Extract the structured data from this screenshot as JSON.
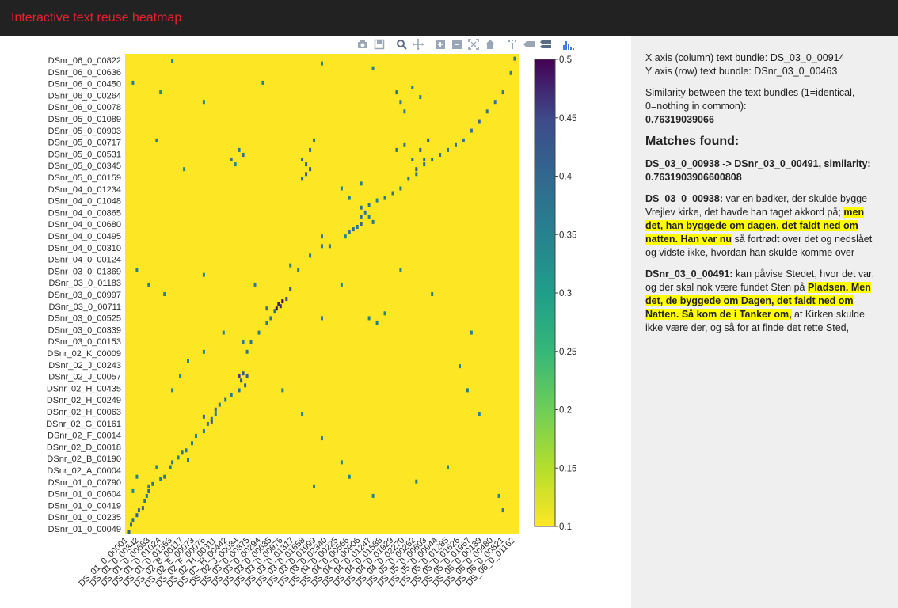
{
  "app": {
    "title": "Interactive text reuse heatmap"
  },
  "colors": {
    "topbar": "#222222",
    "title": "#e8212f",
    "sidepanel": "#efefef",
    "highlight": "#ffff00"
  },
  "modebar": {
    "buttons": [
      {
        "name": "camera-icon",
        "label": "Download plot as a png"
      },
      {
        "name": "save-icon",
        "label": "Save"
      },
      {
        "name": "zoom-icon",
        "label": "Zoom"
      },
      {
        "name": "pan-icon",
        "label": "Pan"
      },
      {
        "name": "zoom-in-icon",
        "label": "Zoom in"
      },
      {
        "name": "zoom-out-icon",
        "label": "Zoom out"
      },
      {
        "name": "autoscale-icon",
        "label": "Autoscale"
      },
      {
        "name": "home-icon",
        "label": "Reset axes"
      },
      {
        "name": "spike-lines-icon",
        "label": "Toggle Spike Lines"
      },
      {
        "name": "hover-closest-icon",
        "label": "Show closest data on hover"
      },
      {
        "name": "hover-compare-icon",
        "label": "Compare data on hover"
      },
      {
        "name": "plotly-logo-icon",
        "label": "Produced with Plotly"
      }
    ]
  },
  "chart_data": {
    "type": "heatmap",
    "title": "",
    "xlabel": "",
    "ylabel": "",
    "colorscale": "viridis (reversed)",
    "zmin": 0.1,
    "zmax": 0.5,
    "colorbar_ticks": [
      "0.5",
      "0.45",
      "0.4",
      "0.35",
      "0.3",
      "0.25",
      "0.2",
      "0.15",
      "0.1"
    ],
    "y_tick_labels": [
      "DSnr_06_0_00822",
      "DSnr_06_0_00636",
      "DSnr_06_0_00450",
      "DSnr_06_0_00264",
      "DSnr_06_0_00078",
      "DSnr_05_0_01089",
      "DSnr_05_0_00903",
      "DSnr_05_0_00717",
      "DSnr_05_0_00531",
      "DSnr_05_0_00345",
      "DSnr_05_0_00159",
      "DSnr_04_0_01234",
      "DSnr_04_0_01048",
      "DSnr_04_0_00865",
      "DSnr_04_0_00680",
      "DSnr_04_0_00495",
      "DSnr_04_0_00310",
      "DSnr_04_0_00124",
      "DSnr_03_0_01369",
      "DSnr_03_0_01183",
      "DSnr_03_0_00997",
      "DSnr_03_0_00711",
      "DSnr_03_0_00525",
      "DSnr_03_0_00339",
      "DSnr_03_0_00153",
      "DSnr_02_K_00009",
      "DSnr_02_J_00243",
      "DSnr_02_J_00057",
      "DSnr_02_H_00435",
      "DSnr_02_H_00249",
      "DSnr_02_H_00063",
      "DSnr_02_G_00161",
      "DSnr_02_F_00014",
      "DSnr_02_D_00018",
      "DSnr_02_B_00190",
      "DSnr_02_A_00004",
      "DSnr_01_0_00790",
      "DSnr_01_0_00604",
      "DSnr_01_0_00419",
      "DSnr_01_0_00235",
      "DSnr_01_0_00049"
    ],
    "x_tick_labels": [
      "DS_01_0_00001",
      "DS_01_0_00342",
      "DS_01_0_00683",
      "DS_01_0_01024",
      "DS_01_0_01363",
      "DS_02_B_00117",
      "DS_02_E_00073",
      "DS_02_F_00076",
      "DS_02_H_00311",
      "DS_02_H_00442",
      "DS_02_J_00034",
      "DS_03_0_00375",
      "DS_03_0_00294",
      "DS_03_0_00635",
      "DS_03_0_00976",
      "DS_03_0_01317",
      "DS_03_0_01658",
      "DS_03_0_01999",
      "DS_03_0_02340",
      "DS_04_0_00225",
      "DS_04_0_00566",
      "DS_04_0_00906",
      "DS_04_0_01247",
      "DS_04_0_01588",
      "DS_04_0_01929",
      "DS_04_0_02270",
      "DS_05_0_00262",
      "DS_05_0_00603",
      "DS_05_0_00944",
      "DS_05_0_01285",
      "DS_05_0_01626",
      "DS_05_0_01967",
      "DS_06_0_00139",
      "DS_06_0_00480",
      "DS_06_0_00821",
      "DS_06_0_01162"
    ],
    "background_value": 0.1,
    "points": [
      {
        "x": 0.01,
        "y": 0.005,
        "z": 0.42
      },
      {
        "x": 0.015,
        "y": 0.02,
        "z": 0.4
      },
      {
        "x": 0.02,
        "y": 0.03,
        "z": 0.38
      },
      {
        "x": 0.03,
        "y": 0.04,
        "z": 0.42
      },
      {
        "x": 0.035,
        "y": 0.05,
        "z": 0.4
      },
      {
        "x": 0.045,
        "y": 0.055,
        "z": 0.41
      },
      {
        "x": 0.05,
        "y": 0.07,
        "z": 0.38
      },
      {
        "x": 0.055,
        "y": 0.08,
        "z": 0.39
      },
      {
        "x": 0.06,
        "y": 0.09,
        "z": 0.4
      },
      {
        "x": 0.07,
        "y": 0.105,
        "z": 0.38
      },
      {
        "x": 0.09,
        "y": 0.115,
        "z": 0.36
      },
      {
        "x": 0.1,
        "y": 0.12,
        "z": 0.38
      },
      {
        "x": 0.115,
        "y": 0.14,
        "z": 0.37
      },
      {
        "x": 0.12,
        "y": 0.15,
        "z": 0.38
      },
      {
        "x": 0.135,
        "y": 0.16,
        "z": 0.37
      },
      {
        "x": 0.145,
        "y": 0.17,
        "z": 0.39
      },
      {
        "x": 0.155,
        "y": 0.175,
        "z": 0.38
      },
      {
        "x": 0.17,
        "y": 0.19,
        "z": 0.37
      },
      {
        "x": 0.18,
        "y": 0.205,
        "z": 0.36
      },
      {
        "x": 0.2,
        "y": 0.215,
        "z": 0.37
      },
      {
        "x": 0.21,
        "y": 0.23,
        "z": 0.38
      },
      {
        "x": 0.22,
        "y": 0.24,
        "z": 0.39
      },
      {
        "x": 0.23,
        "y": 0.25,
        "z": 0.36
      },
      {
        "x": 0.24,
        "y": 0.27,
        "z": 0.37
      },
      {
        "x": 0.255,
        "y": 0.28,
        "z": 0.38
      },
      {
        "x": 0.27,
        "y": 0.29,
        "z": 0.36
      },
      {
        "x": 0.29,
        "y": 0.3,
        "z": 0.37
      },
      {
        "x": 0.22,
        "y": 0.235,
        "z": 0.42
      },
      {
        "x": 0.23,
        "y": 0.26,
        "z": 0.4
      },
      {
        "x": 0.2,
        "y": 0.245,
        "z": 0.41
      },
      {
        "x": 0.16,
        "y": 0.155,
        "z": 0.38
      },
      {
        "x": 0.295,
        "y": 0.32,
        "z": 0.44
      },
      {
        "x": 0.3,
        "y": 0.335,
        "z": 0.42
      },
      {
        "x": 0.31,
        "y": 0.33,
        "z": 0.43
      },
      {
        "x": 0.305,
        "y": 0.31,
        "z": 0.41
      },
      {
        "x": 0.29,
        "y": 0.33,
        "z": 0.46
      },
      {
        "x": 0.31,
        "y": 0.38,
        "z": 0.37
      },
      {
        "x": 0.32,
        "y": 0.4,
        "z": 0.38
      },
      {
        "x": 0.34,
        "y": 0.42,
        "z": 0.36
      },
      {
        "x": 0.36,
        "y": 0.44,
        "z": 0.37
      },
      {
        "x": 0.37,
        "y": 0.45,
        "z": 0.38
      },
      {
        "x": 0.36,
        "y": 0.47,
        "z": 0.39
      },
      {
        "x": 0.38,
        "y": 0.465,
        "z": 0.38
      },
      {
        "x": 0.385,
        "y": 0.47,
        "z": 0.49
      },
      {
        "x": 0.39,
        "y": 0.48,
        "z": 0.48
      },
      {
        "x": 0.4,
        "y": 0.485,
        "z": 0.5
      },
      {
        "x": 0.395,
        "y": 0.475,
        "z": 0.47
      },
      {
        "x": 0.41,
        "y": 0.49,
        "z": 0.45
      },
      {
        "x": 0.42,
        "y": 0.51,
        "z": 0.43
      },
      {
        "x": 0.44,
        "y": 0.55,
        "z": 0.36
      },
      {
        "x": 0.47,
        "y": 0.58,
        "z": 0.37
      },
      {
        "x": 0.5,
        "y": 0.6,
        "z": 0.36
      },
      {
        "x": 0.52,
        "y": 0.6,
        "z": 0.37
      },
      {
        "x": 0.56,
        "y": 0.62,
        "z": 0.35
      },
      {
        "x": 0.57,
        "y": 0.63,
        "z": 0.37
      },
      {
        "x": 0.59,
        "y": 0.64,
        "z": 0.38
      },
      {
        "x": 0.6,
        "y": 0.645,
        "z": 0.4
      },
      {
        "x": 0.58,
        "y": 0.635,
        "z": 0.39
      },
      {
        "x": 0.5,
        "y": 0.62,
        "z": 0.36
      },
      {
        "x": 0.6,
        "y": 0.66,
        "z": 0.38
      },
      {
        "x": 0.61,
        "y": 0.67,
        "z": 0.37
      },
      {
        "x": 0.62,
        "y": 0.685,
        "z": 0.38
      },
      {
        "x": 0.64,
        "y": 0.695,
        "z": 0.36
      },
      {
        "x": 0.66,
        "y": 0.7,
        "z": 0.37
      },
      {
        "x": 0.68,
        "y": 0.71,
        "z": 0.38
      },
      {
        "x": 0.7,
        "y": 0.72,
        "z": 0.37
      },
      {
        "x": 0.72,
        "y": 0.74,
        "z": 0.38
      },
      {
        "x": 0.74,
        "y": 0.75,
        "z": 0.37
      },
      {
        "x": 0.76,
        "y": 0.77,
        "z": 0.38
      },
      {
        "x": 0.78,
        "y": 0.78,
        "z": 0.39
      },
      {
        "x": 0.8,
        "y": 0.79,
        "z": 0.38
      },
      {
        "x": 0.82,
        "y": 0.8,
        "z": 0.37
      },
      {
        "x": 0.84,
        "y": 0.81,
        "z": 0.38
      },
      {
        "x": 0.86,
        "y": 0.82,
        "z": 0.37
      },
      {
        "x": 0.88,
        "y": 0.84,
        "z": 0.38
      },
      {
        "x": 0.9,
        "y": 0.86,
        "z": 0.39
      },
      {
        "x": 0.92,
        "y": 0.88,
        "z": 0.37
      },
      {
        "x": 0.94,
        "y": 0.9,
        "z": 0.38
      },
      {
        "x": 0.96,
        "y": 0.92,
        "z": 0.37
      },
      {
        "x": 0.98,
        "y": 0.96,
        "z": 0.36
      },
      {
        "x": 0.99,
        "y": 0.99,
        "z": 0.38
      },
      {
        "x": 0.45,
        "y": 0.78,
        "z": 0.4
      },
      {
        "x": 0.46,
        "y": 0.77,
        "z": 0.41
      },
      {
        "x": 0.47,
        "y": 0.8,
        "z": 0.39
      },
      {
        "x": 0.48,
        "y": 0.82,
        "z": 0.38
      },
      {
        "x": 0.46,
        "y": 0.75,
        "z": 0.42
      },
      {
        "x": 0.45,
        "y": 0.74,
        "z": 0.4
      },
      {
        "x": 0.47,
        "y": 0.76,
        "z": 0.43
      },
      {
        "x": 0.75,
        "y": 0.8,
        "z": 0.41
      },
      {
        "x": 0.77,
        "y": 0.82,
        "z": 0.43
      },
      {
        "x": 0.76,
        "y": 0.78,
        "z": 0.4
      },
      {
        "x": 0.73,
        "y": 0.78,
        "z": 0.39
      },
      {
        "x": 0.74,
        "y": 0.76,
        "z": 0.42
      },
      {
        "x": 0.71,
        "y": 0.81,
        "z": 0.38
      },
      {
        "x": 0.69,
        "y": 0.8,
        "z": 0.37
      },
      {
        "x": 0.69,
        "y": 0.92,
        "z": 0.38
      },
      {
        "x": 0.7,
        "y": 0.9,
        "z": 0.37
      },
      {
        "x": 0.71,
        "y": 0.88,
        "z": 0.36
      },
      {
        "x": 0.73,
        "y": 0.93,
        "z": 0.37
      },
      {
        "x": 0.75,
        "y": 0.91,
        "z": 0.36
      },
      {
        "x": 0.6,
        "y": 0.68,
        "z": 0.38
      },
      {
        "x": 0.62,
        "y": 0.66,
        "z": 0.36
      },
      {
        "x": 0.63,
        "y": 0.65,
        "z": 0.37
      },
      {
        "x": 0.06,
        "y": 0.1,
        "z": 0.36
      },
      {
        "x": 0.08,
        "y": 0.14,
        "z": 0.35
      },
      {
        "x": 0.03,
        "y": 0.12,
        "z": 0.36
      },
      {
        "x": 0.02,
        "y": 0.09,
        "z": 0.34
      },
      {
        "x": 0.27,
        "y": 0.78,
        "z": 0.37
      },
      {
        "x": 0.29,
        "y": 0.8,
        "z": 0.36
      },
      {
        "x": 0.3,
        "y": 0.79,
        "z": 0.38
      },
      {
        "x": 0.28,
        "y": 0.77,
        "z": 0.35
      },
      {
        "x": 0.12,
        "y": 0.3,
        "z": 0.36
      },
      {
        "x": 0.14,
        "y": 0.33,
        "z": 0.35
      },
      {
        "x": 0.16,
        "y": 0.36,
        "z": 0.34
      },
      {
        "x": 0.4,
        "y": 0.3,
        "z": 0.36
      },
      {
        "x": 0.45,
        "y": 0.25,
        "z": 0.35
      },
      {
        "x": 0.5,
        "y": 0.2,
        "z": 0.36
      },
      {
        "x": 0.55,
        "y": 0.15,
        "z": 0.35
      },
      {
        "x": 0.62,
        "y": 0.45,
        "z": 0.36
      },
      {
        "x": 0.64,
        "y": 0.44,
        "z": 0.37
      },
      {
        "x": 0.66,
        "y": 0.46,
        "z": 0.35
      },
      {
        "x": 0.5,
        "y": 0.45,
        "z": 0.36
      },
      {
        "x": 0.85,
        "y": 0.35,
        "z": 0.35
      },
      {
        "x": 0.87,
        "y": 0.3,
        "z": 0.36
      },
      {
        "x": 0.9,
        "y": 0.25,
        "z": 0.35
      },
      {
        "x": 0.95,
        "y": 0.08,
        "z": 0.36
      },
      {
        "x": 0.96,
        "y": 0.05,
        "z": 0.37
      },
      {
        "x": 0.02,
        "y": 0.94,
        "z": 0.36
      },
      {
        "x": 0.09,
        "y": 0.92,
        "z": 0.35
      },
      {
        "x": 0.2,
        "y": 0.9,
        "z": 0.35
      },
      {
        "x": 0.35,
        "y": 0.94,
        "z": 0.36
      },
      {
        "x": 0.08,
        "y": 0.82,
        "z": 0.35
      },
      {
        "x": 0.15,
        "y": 0.76,
        "z": 0.34
      },
      {
        "x": 0.03,
        "y": 0.55,
        "z": 0.35
      },
      {
        "x": 0.06,
        "y": 0.52,
        "z": 0.36
      },
      {
        "x": 0.1,
        "y": 0.5,
        "z": 0.35
      },
      {
        "x": 0.2,
        "y": 0.54,
        "z": 0.35
      },
      {
        "x": 0.33,
        "y": 0.52,
        "z": 0.36
      },
      {
        "x": 0.42,
        "y": 0.56,
        "z": 0.36
      },
      {
        "x": 0.55,
        "y": 0.52,
        "z": 0.35
      },
      {
        "x": 0.7,
        "y": 0.55,
        "z": 0.35
      },
      {
        "x": 0.78,
        "y": 0.5,
        "z": 0.36
      },
      {
        "x": 0.88,
        "y": 0.42,
        "z": 0.35
      },
      {
        "x": 0.25,
        "y": 0.42,
        "z": 0.35
      },
      {
        "x": 0.3,
        "y": 0.4,
        "z": 0.36
      },
      {
        "x": 0.2,
        "y": 0.38,
        "z": 0.35
      },
      {
        "x": 0.48,
        "y": 0.1,
        "z": 0.36
      },
      {
        "x": 0.57,
        "y": 0.12,
        "z": 0.35
      },
      {
        "x": 0.63,
        "y": 0.08,
        "z": 0.35
      },
      {
        "x": 0.74,
        "y": 0.11,
        "z": 0.36
      },
      {
        "x": 0.82,
        "y": 0.14,
        "z": 0.35
      },
      {
        "x": 0.57,
        "y": 0.7,
        "z": 0.36
      },
      {
        "x": 0.55,
        "y": 0.72,
        "z": 0.35
      },
      {
        "x": 0.6,
        "y": 0.73,
        "z": 0.36
      },
      {
        "x": 0.12,
        "y": 0.985,
        "z": 0.35
      },
      {
        "x": 0.5,
        "y": 0.98,
        "z": 0.35
      },
      {
        "x": 0.63,
        "y": 0.97,
        "z": 0.35
      }
    ]
  },
  "info": {
    "x_axis_text": "X axis (column) text bundle: DS_03_0_00914",
    "y_axis_text": "Y axis (row) text bundle: DSnr_03_0_00463",
    "similarity_caption": "Similarity between the text bundles (1=identical, 0=nothing in common):",
    "similarity_value": "0.76319039066",
    "matches_heading": "Matches found:",
    "match_title": "DS_03_0_00938 -> DSnr_03_0_00491, similarity: 0.7631903906600808",
    "passage1": {
      "id": "DS_03_0_00938:",
      "pre": " var en bødker, der skulde bygge Vrejlev kirke, det havde han taget akkord på; ",
      "highlight": "men det, han byggede om dagen, det faldt ned om natten. Han var nu",
      "post": " så fortrødt over det og nedslået og vidste ikke, hvordan han skulde komme over"
    },
    "passage2": {
      "id": "DSnr_03_0_00491:",
      "pre": " kan påvise Stedet, hvor det var, og der skal nok være fundet Sten på ",
      "highlight": "Pladsen. Men det, de byggede om Dagen, det faldt ned om Natten. Så kom de i Tanker om,",
      "post": " at Kirken skulde ikke være der, og så for at finde det rette Sted,"
    }
  }
}
